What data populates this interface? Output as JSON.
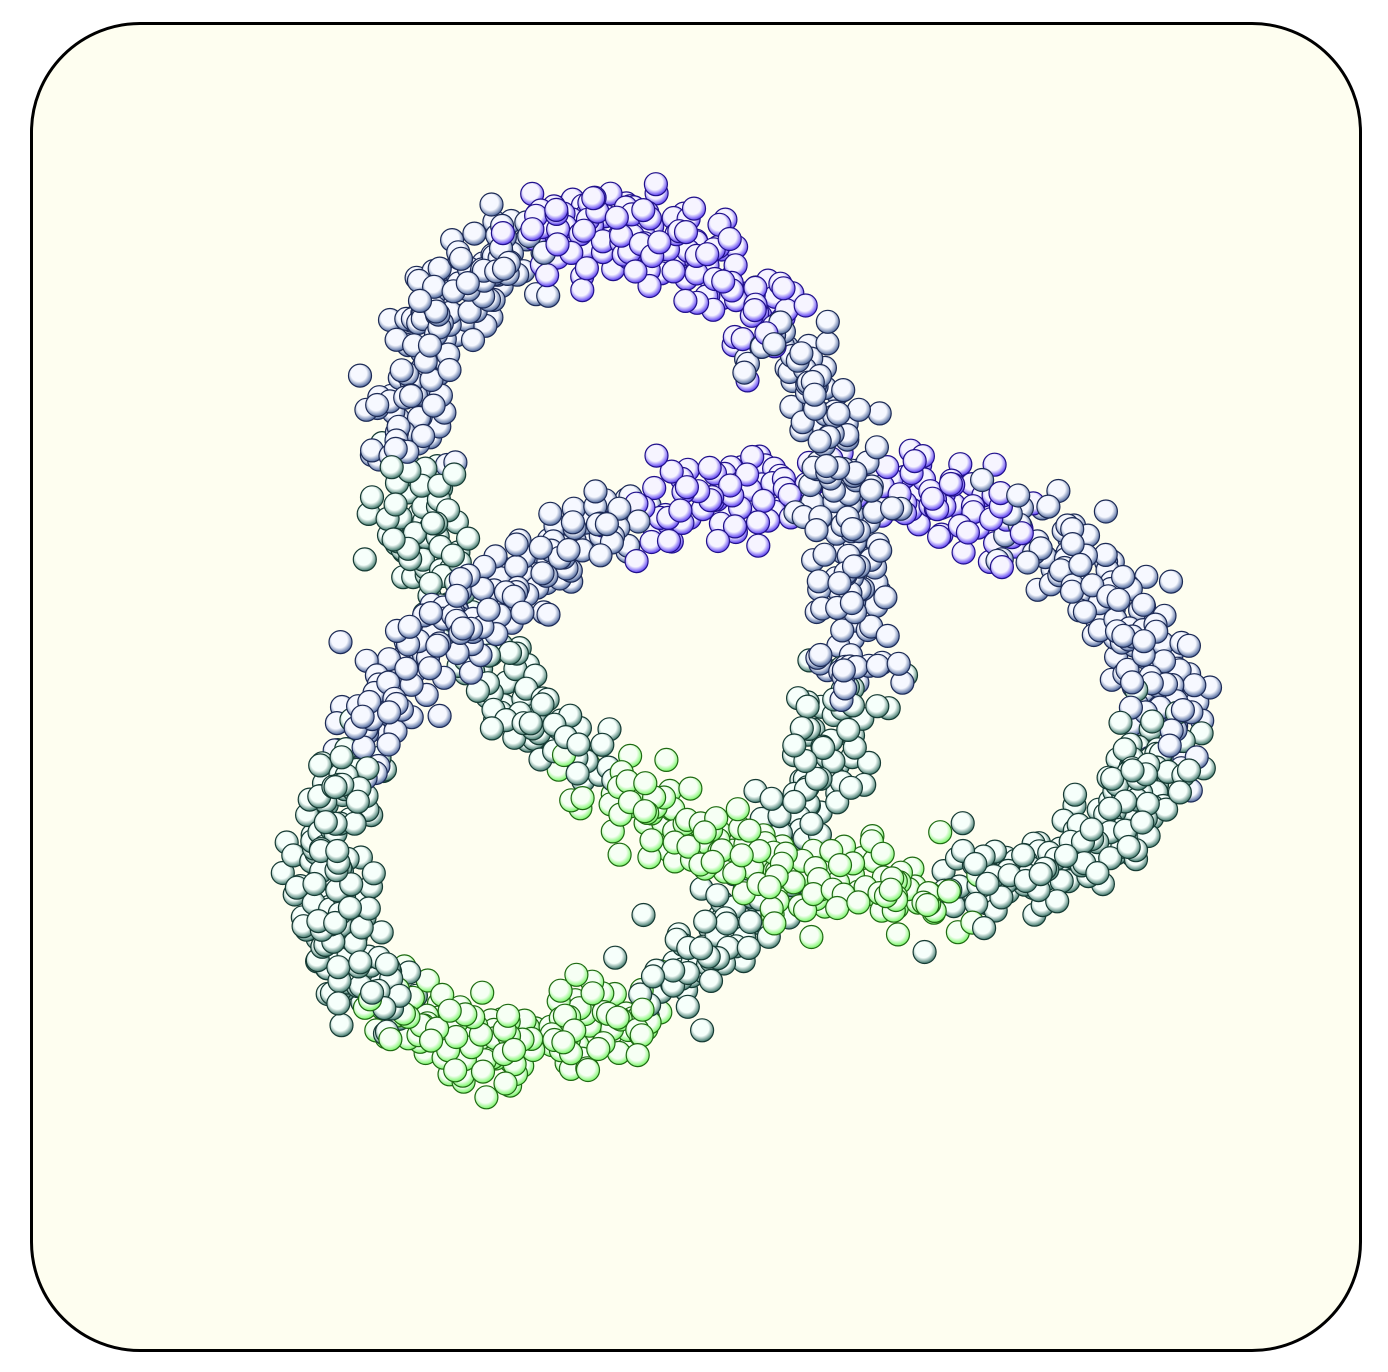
{
  "figure": {
    "background_color": "#fefef0",
    "border_color": "#000000",
    "description_shape": "trefoil-knot",
    "palette": {
      "green": {
        "fill_light": "#f6fff4",
        "fill_dark": "#6cf45a",
        "stroke": "#1e6a12"
      },
      "teal": {
        "fill_light": "#f6fffb",
        "fill_dark": "#2f6b5e",
        "stroke": "#153a33"
      },
      "slate": {
        "fill_light": "#f6f8ff",
        "fill_dark": "#3f5a93",
        "stroke": "#1c2a55"
      },
      "blue": {
        "fill_light": "#f6f4ff",
        "fill_dark": "#4d2ef0",
        "stroke": "#20108a"
      }
    },
    "color_cycle": [
      "blue",
      "slate",
      "teal",
      "green",
      "teal",
      "slate",
      "blue",
      "slate",
      "teal",
      "green",
      "teal",
      "slate"
    ]
  }
}
